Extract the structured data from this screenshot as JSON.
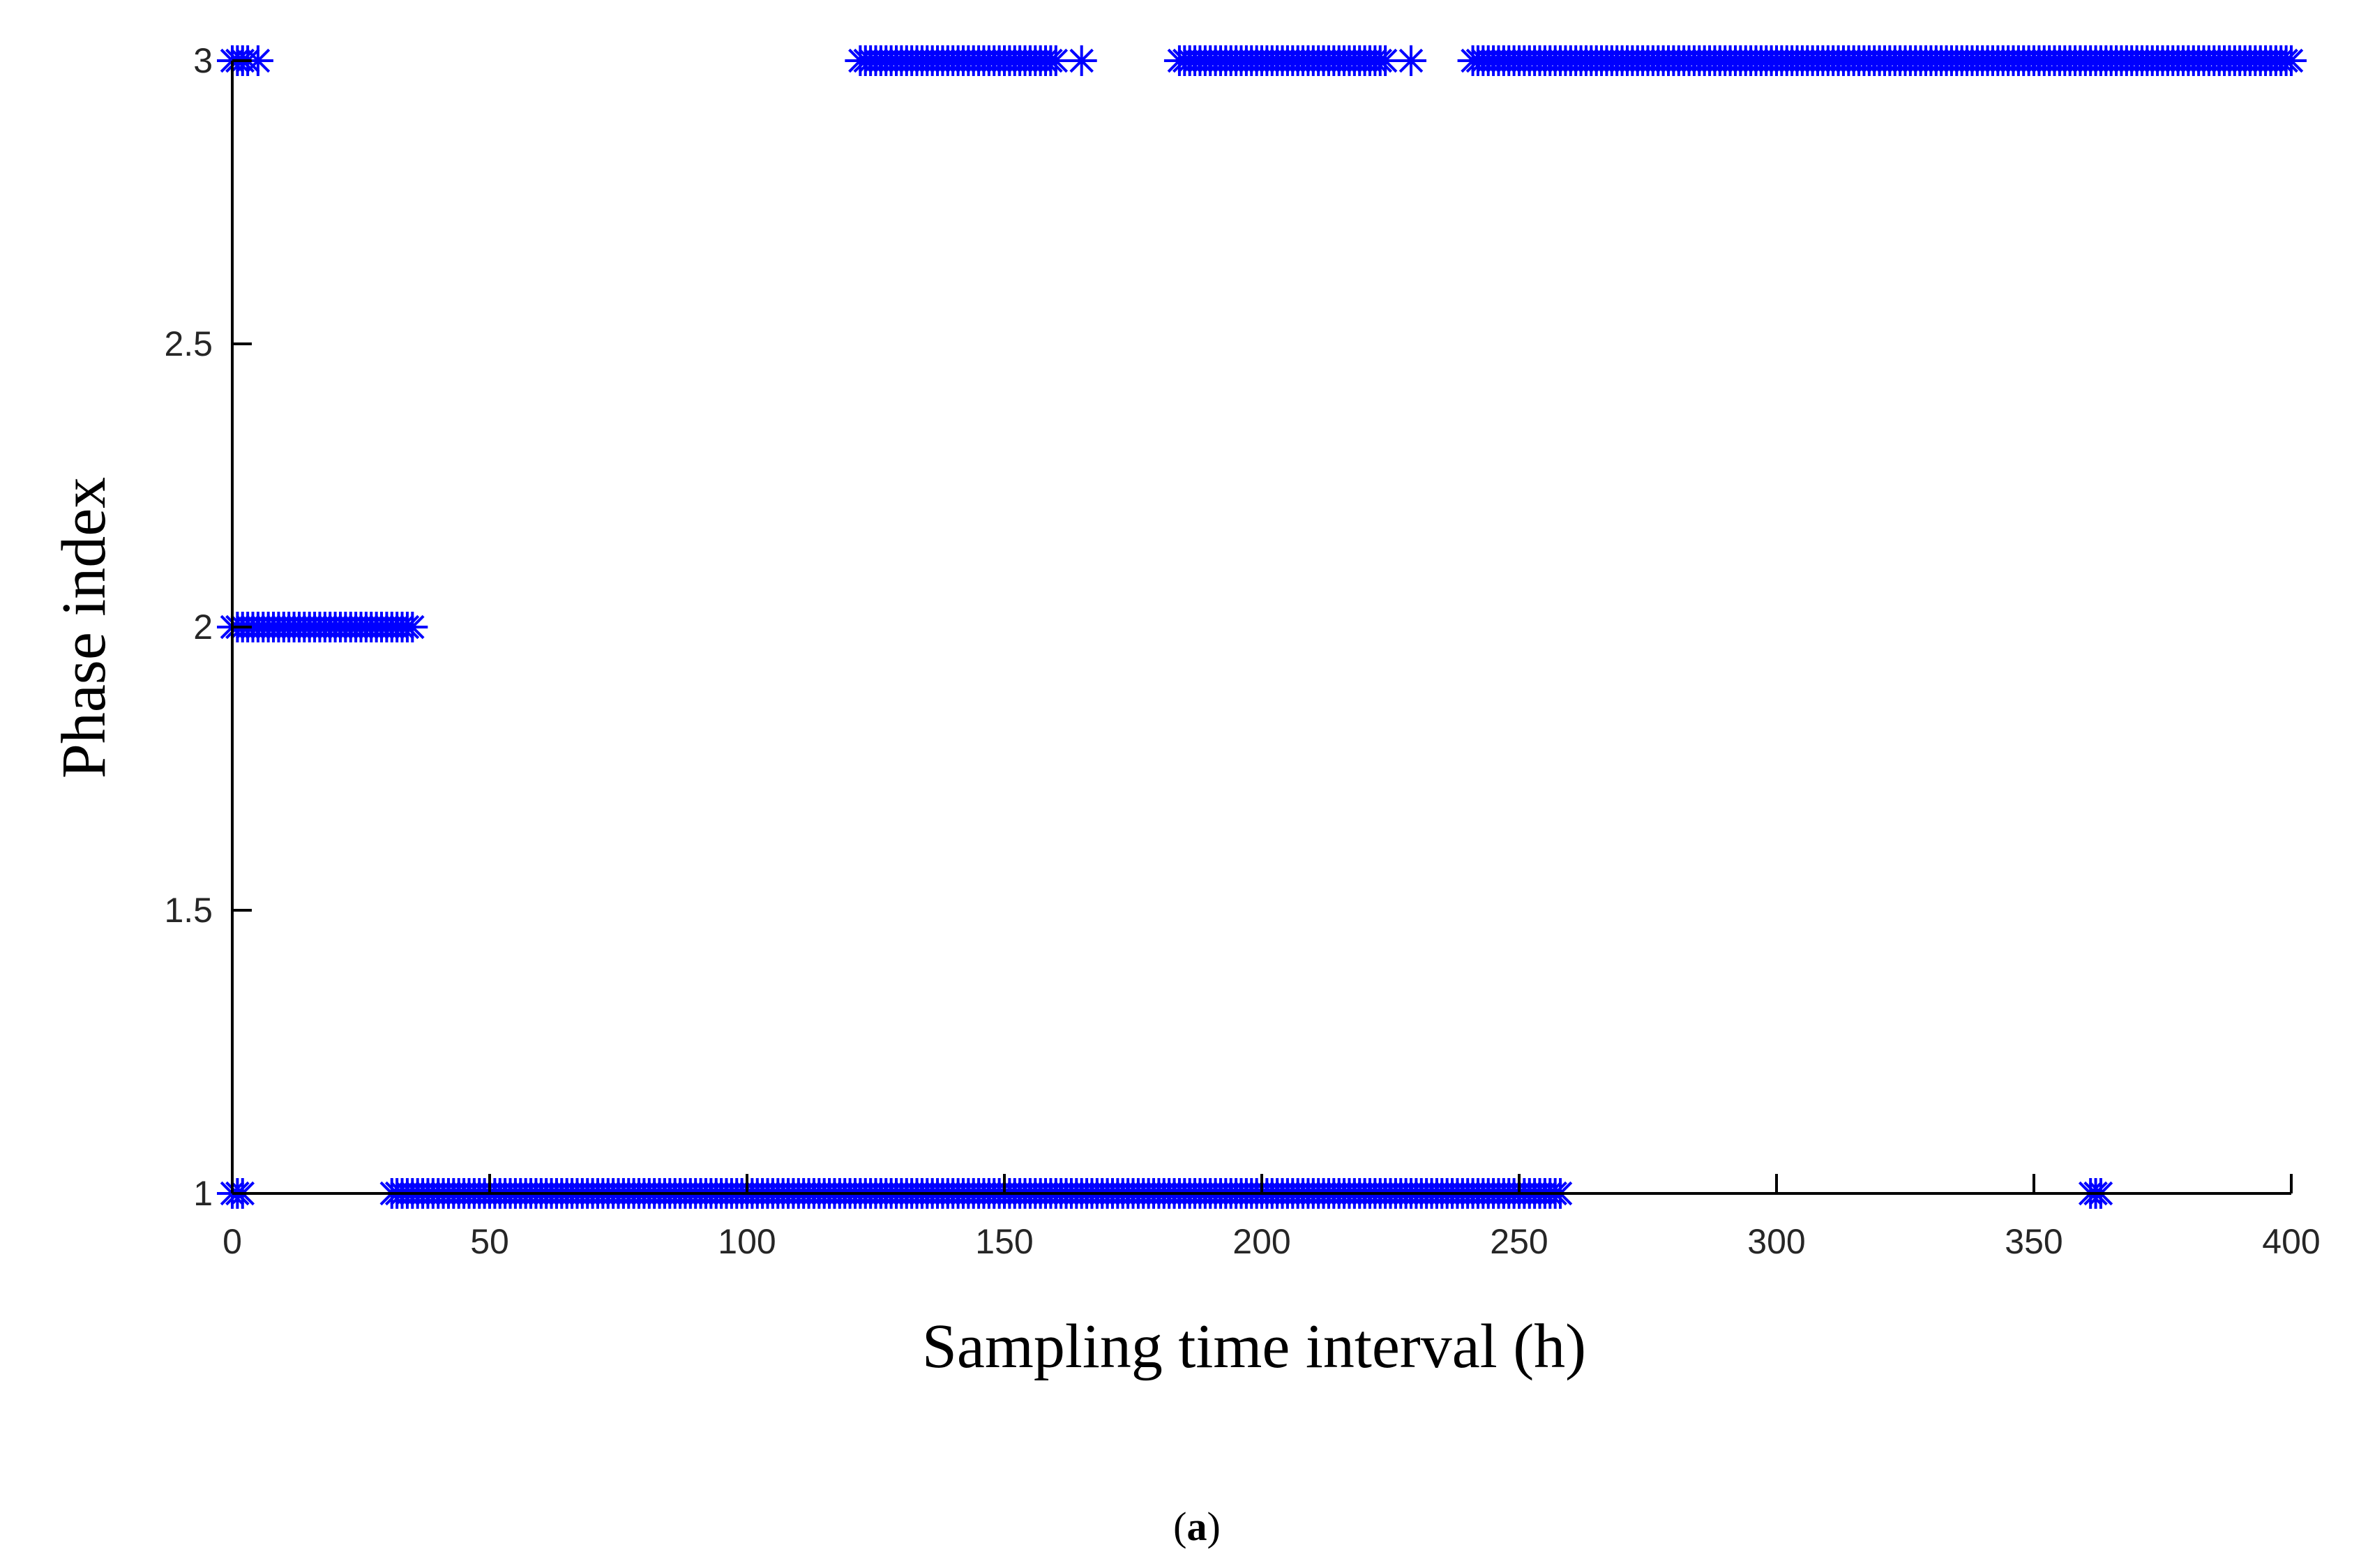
{
  "chart_data": {
    "type": "scatter",
    "xlabel": "Sampling time interval (h)",
    "ylabel": "Phase index",
    "xlim": [
      0,
      400
    ],
    "ylim": [
      1,
      3
    ],
    "xticks": [
      0,
      50,
      100,
      150,
      200,
      250,
      300,
      350,
      400
    ],
    "yticks": [
      1,
      1.5,
      2,
      2.5,
      3
    ],
    "xtick_labels": [
      "0",
      "50",
      "100",
      "150",
      "200",
      "250",
      "300",
      "350",
      "400"
    ],
    "ytick_labels": [
      "1",
      "1.5",
      "2",
      "2.5",
      "3"
    ],
    "grid": false,
    "marker": "asterisk",
    "color": "#0000ff",
    "segments": [
      {
        "y": 3,
        "x_start": 0,
        "x_end": 3
      },
      {
        "y": 3,
        "x": [
          5
        ]
      },
      {
        "y": 3,
        "x_start": 122,
        "x_end": 160
      },
      {
        "y": 3,
        "x": [
          165
        ]
      },
      {
        "y": 3,
        "x_start": 184,
        "x_end": 224
      },
      {
        "y": 3,
        "x": [
          229
        ]
      },
      {
        "y": 3,
        "x_start": 241,
        "x_end": 400
      },
      {
        "y": 2,
        "x_start": 0,
        "x_end": 35
      },
      {
        "y": 1,
        "x_start": 0,
        "x_end": 2
      },
      {
        "y": 1,
        "x_start": 31,
        "x_end": 258
      },
      {
        "y": 1,
        "x_start": 361,
        "x_end": 363
      }
    ]
  },
  "caption": {
    "open": "(",
    "label": "a",
    "close": ")"
  }
}
